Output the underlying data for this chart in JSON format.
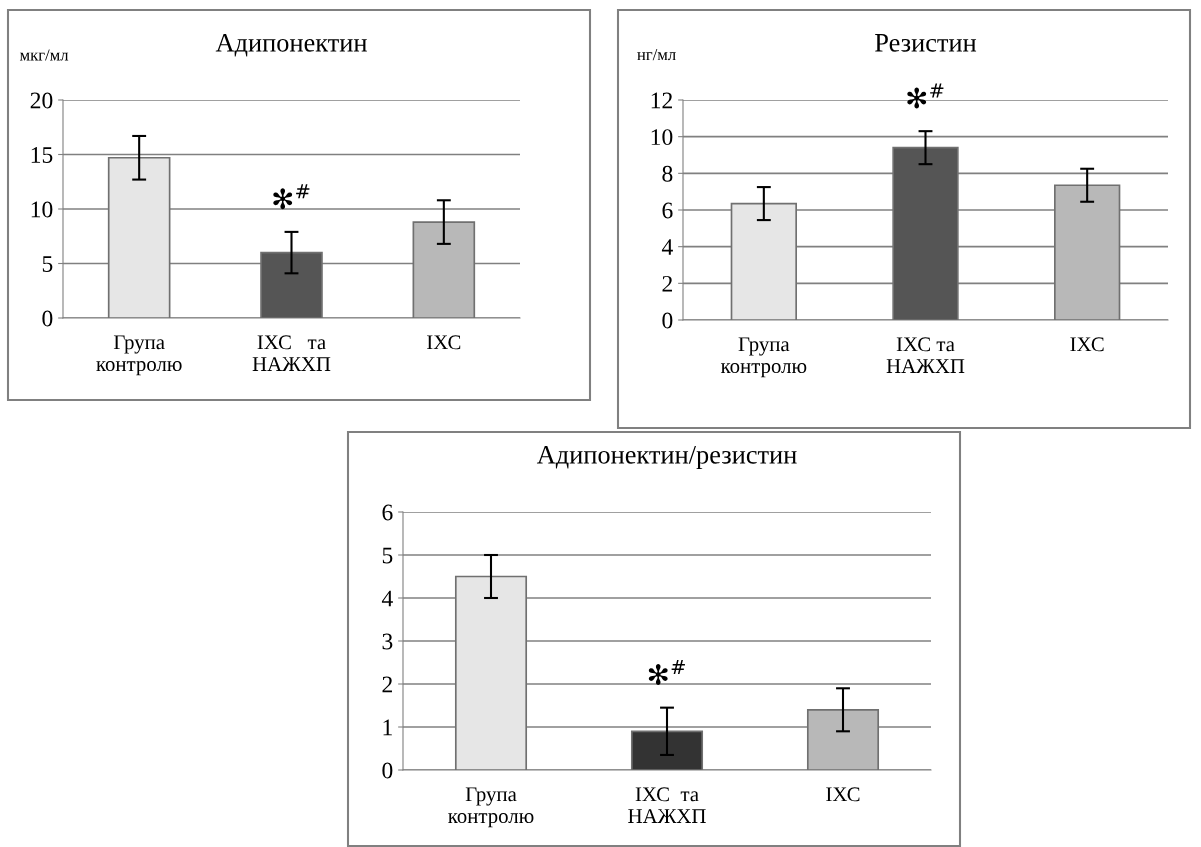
{
  "chart_data": [
    {
      "type": "bar",
      "title": "Адипонектин",
      "ylabel": "мкг/мл",
      "categories": [
        "Група\nконтролю",
        "ІХС   та\nНАЖХП",
        "ІХС"
      ],
      "values": [
        14.7,
        6.0,
        8.8
      ],
      "errors": [
        2.0,
        1.9,
        2.0
      ],
      "colors": [
        "#e6e6e6",
        "#555555",
        "#b8b8b8"
      ],
      "ylim": [
        0,
        20
      ],
      "yticks": [
        0,
        5,
        10,
        15,
        20
      ],
      "grid": "y",
      "annotations": [
        "✻$^{#}$"
      ]
    },
    {
      "type": "bar",
      "title": "Резистин",
      "ylabel": "нг/мл",
      "categories": [
        "Група\nконтролю",
        "ІХС та\nНАЖХП",
        "ІХС"
      ],
      "values": [
        6.35,
        9.4,
        7.35
      ],
      "errors": [
        0.9,
        0.9,
        0.9
      ],
      "colors": [
        "#e6e6e6",
        "#555555",
        "#b8b8b8"
      ],
      "ylim": [
        0,
        12
      ],
      "yticks": [
        0,
        2,
        4,
        6,
        8,
        10,
        12
      ],
      "grid": "y",
      "annotations": [
        "✻$^{#}$"
      ]
    },
    {
      "type": "bar",
      "title": "Адипонектин/резистин",
      "categories": [
        "Група\nконтролю",
        "ІХС  та\nНАЖХП",
        "ІХС"
      ],
      "values": [
        4.5,
        0.9,
        1.4
      ],
      "errors": [
        0.5,
        0.55,
        0.5
      ],
      "colors": [
        "#e6e6e6",
        "#333333",
        "#b8b8b8"
      ],
      "ylim": [
        0,
        6
      ],
      "yticks": [
        0,
        1,
        2,
        3,
        4,
        5,
        6
      ],
      "grid": "y",
      "annotations": [
        "✻$^{#}$"
      ]
    }
  ]
}
